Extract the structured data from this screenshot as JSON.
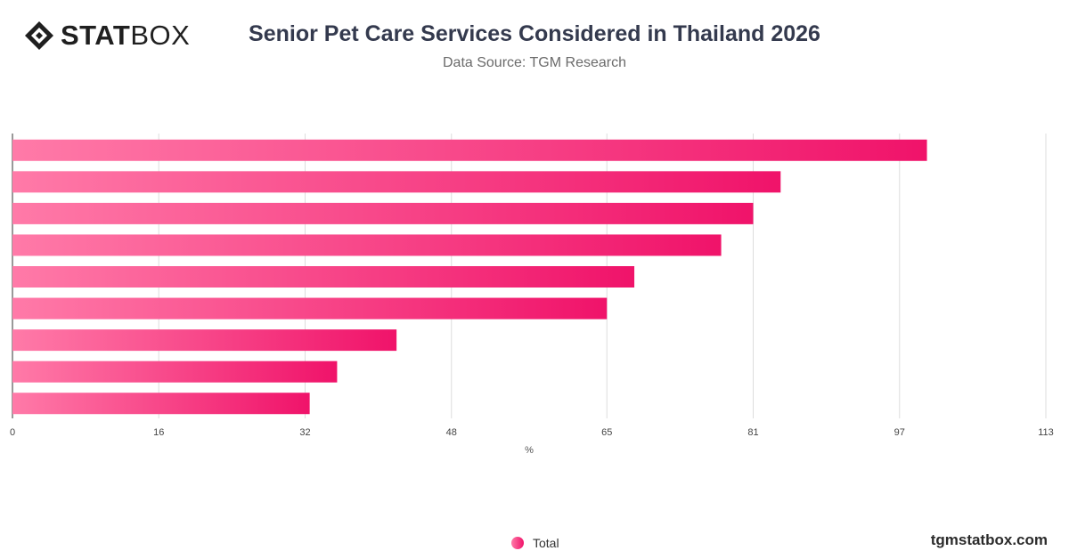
{
  "logo": {
    "bold": "STAT",
    "light": "BOX",
    "icon": "statbox-diamond-icon"
  },
  "header": {
    "title": "Senior Pet Care Services Considered in Thailand 2026",
    "subtitle": "Data Source: TGM Research"
  },
  "footer": {
    "site": "tgmstatbox.com"
  },
  "chart_data": {
    "type": "bar",
    "orientation": "horizontal",
    "categories": [
      "",
      "",
      "",
      "",
      "",
      "",
      "",
      "",
      ""
    ],
    "series": [
      {
        "name": "Total",
        "values": [
          100,
          84,
          81,
          77.5,
          68,
          65,
          42,
          35.5,
          32.5
        ]
      }
    ],
    "xlabel": "%",
    "ylabel": "",
    "xlim": [
      0,
      113
    ],
    "xticks": [
      0,
      16,
      32,
      48,
      65,
      81,
      97,
      113
    ],
    "grid": true,
    "legend": "bottom-center",
    "colors": {
      "bar_start": "#ff7aa8",
      "bar_end": "#f0136a",
      "grid": "#dddddd",
      "axis": "#333333"
    }
  }
}
